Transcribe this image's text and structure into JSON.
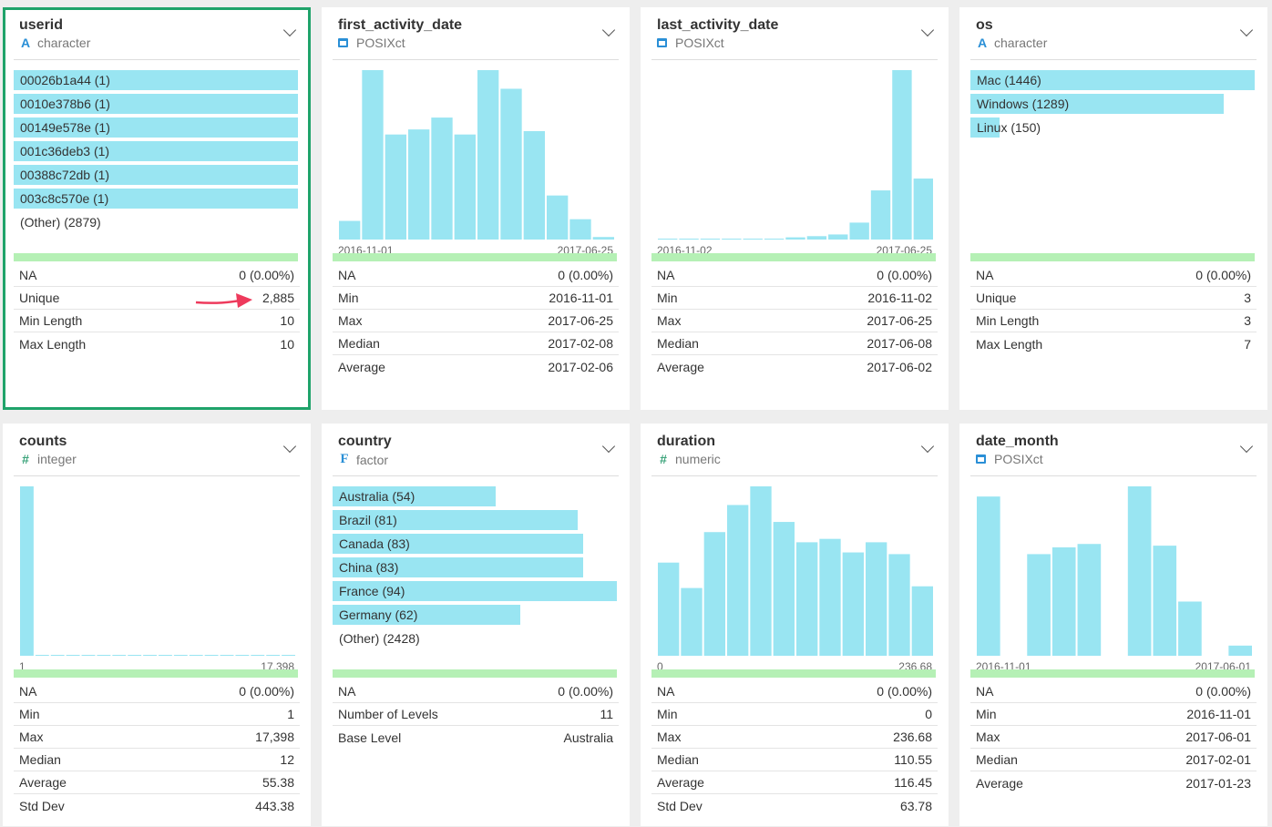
{
  "colors": {
    "bar": "#99e5f2",
    "selected_border": "#1fa36a",
    "green_bar": "#b5f0b5",
    "arrow": "#ee3a5c"
  },
  "cards": [
    {
      "name": "userid",
      "type": "character",
      "type_icon": "A",
      "list": [
        {
          "label": "00026b1a44 (1)",
          "frac": 1.0
        },
        {
          "label": "0010e378b6 (1)",
          "frac": 1.0
        },
        {
          "label": "00149e578e (1)",
          "frac": 1.0
        },
        {
          "label": "001c36deb3 (1)",
          "frac": 1.0
        },
        {
          "label": "00388c72db (1)",
          "frac": 1.0
        },
        {
          "label": "003c8c570e (1)",
          "frac": 1.0
        }
      ],
      "other": "(Other) (2879)",
      "stats": [
        {
          "label": "NA",
          "value": "0 (0.00%)"
        },
        {
          "label": "Unique",
          "value": "2,885"
        },
        {
          "label": "Min Length",
          "value": "10"
        },
        {
          "label": "Max Length",
          "value": "10"
        }
      ]
    },
    {
      "name": "first_activity_date",
      "type": "POSIXct",
      "type_icon": "calendar",
      "hist": [
        0.11,
        1.0,
        0.62,
        0.65,
        0.72,
        0.62,
        1.0,
        0.89,
        0.64,
        0.26,
        0.12,
        0.015
      ],
      "axis_min": "2016-11-01",
      "axis_max": "2017-06-25",
      "stats": [
        {
          "label": "NA",
          "value": "0 (0.00%)"
        },
        {
          "label": "Min",
          "value": "2016-11-01"
        },
        {
          "label": "Max",
          "value": "2017-06-25"
        },
        {
          "label": "Median",
          "value": "2017-02-08"
        },
        {
          "label": "Average",
          "value": "2017-02-06"
        }
      ]
    },
    {
      "name": "last_activity_date",
      "type": "POSIXct",
      "type_icon": "calendar",
      "hist": [
        0.004,
        0.004,
        0.004,
        0.004,
        0.004,
        0.004,
        0.013,
        0.02,
        0.03,
        0.1,
        0.29,
        1.0,
        0.36
      ],
      "axis_min": "2016-11-02",
      "axis_max": "2017-06-25",
      "stats": [
        {
          "label": "NA",
          "value": "0 (0.00%)"
        },
        {
          "label": "Min",
          "value": "2016-11-02"
        },
        {
          "label": "Max",
          "value": "2017-06-25"
        },
        {
          "label": "Median",
          "value": "2017-06-08"
        },
        {
          "label": "Average",
          "value": "2017-06-02"
        }
      ]
    },
    {
      "name": "os",
      "type": "character",
      "type_icon": "A",
      "list": [
        {
          "label": "Mac (1446)",
          "frac": 1.0
        },
        {
          "label": "Windows (1289)",
          "frac": 0.891
        },
        {
          "label": "Linux (150)",
          "frac": 0.104
        }
      ],
      "other": "",
      "stats": [
        {
          "label": "NA",
          "value": "0 (0.00%)"
        },
        {
          "label": "Unique",
          "value": "3"
        },
        {
          "label": "Min Length",
          "value": "3"
        },
        {
          "label": "Max Length",
          "value": "7"
        }
      ]
    },
    {
      "name": "counts",
      "type": "integer",
      "type_icon": "#",
      "hist": [
        1.0,
        0.004,
        0.004,
        0.004,
        0.004,
        0.004,
        0.004,
        0.004,
        0.004,
        0.004,
        0.004,
        0.004,
        0.004,
        0.004,
        0.004,
        0.004,
        0.004,
        0.004
      ],
      "axis_min": "1",
      "axis_max": "17,398",
      "stats": [
        {
          "label": "NA",
          "value": "0 (0.00%)"
        },
        {
          "label": "Min",
          "value": "1"
        },
        {
          "label": "Max",
          "value": "17,398"
        },
        {
          "label": "Median",
          "value": "12"
        },
        {
          "label": "Average",
          "value": "55.38"
        },
        {
          "label": "Std Dev",
          "value": "443.38"
        }
      ]
    },
    {
      "name": "country",
      "type": "factor",
      "type_icon": "F",
      "list": [
        {
          "label": "Australia (54)",
          "frac": 0.574
        },
        {
          "label": "Brazil (81)",
          "frac": 0.862
        },
        {
          "label": "Canada (83)",
          "frac": 0.883
        },
        {
          "label": "China (83)",
          "frac": 0.883
        },
        {
          "label": "France (94)",
          "frac": 1.0
        },
        {
          "label": "Germany (62)",
          "frac": 0.66
        }
      ],
      "other": "(Other) (2428)",
      "stats": [
        {
          "label": "NA",
          "value": "0 (0.00%)"
        },
        {
          "label": "Number of Levels",
          "value": "11"
        },
        {
          "label": "Base Level",
          "value": "Australia"
        }
      ]
    },
    {
      "name": "duration",
      "type": "numeric",
      "type_icon": "#",
      "hist": [
        0.55,
        0.4,
        0.73,
        0.89,
        1.0,
        0.79,
        0.67,
        0.69,
        0.61,
        0.67,
        0.6,
        0.41
      ],
      "axis_min": "0",
      "axis_max": "236.68",
      "stats": [
        {
          "label": "NA",
          "value": "0 (0.00%)"
        },
        {
          "label": "Min",
          "value": "0"
        },
        {
          "label": "Max",
          "value": "236.68"
        },
        {
          "label": "Median",
          "value": "110.55"
        },
        {
          "label": "Average",
          "value": "116.45"
        },
        {
          "label": "Std Dev",
          "value": "63.78"
        }
      ]
    },
    {
      "name": "date_month",
      "type": "POSIXct",
      "type_icon": "calendar",
      "hist": [
        0.94,
        0.0,
        0.6,
        0.64,
        0.66,
        0.0,
        1.0,
        0.65,
        0.32,
        0.0,
        0.06
      ],
      "axis_min": "2016-11-01",
      "axis_max": "2017-06-01",
      "stats": [
        {
          "label": "NA",
          "value": "0 (0.00%)"
        },
        {
          "label": "Min",
          "value": "2016-11-01"
        },
        {
          "label": "Max",
          "value": "2017-06-01"
        },
        {
          "label": "Median",
          "value": "2017-02-01"
        },
        {
          "label": "Average",
          "value": "2017-01-23"
        }
      ]
    }
  ]
}
